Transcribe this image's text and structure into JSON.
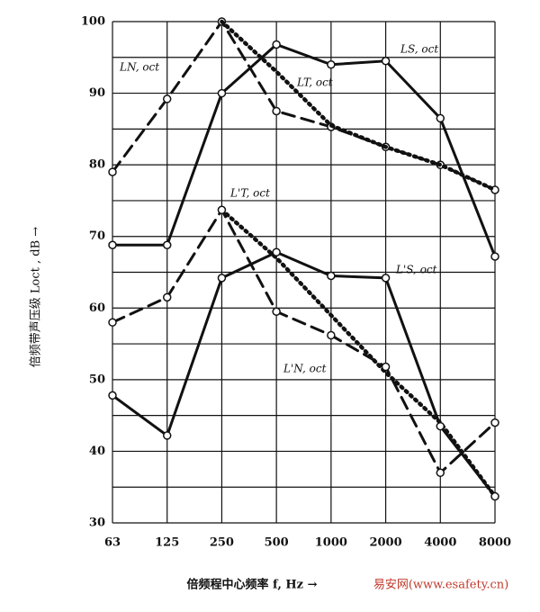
{
  "chart_data": {
    "type": "line",
    "y_label": "倍频带声压级 Loct , dB →",
    "x_label": "倍频程中心频率 f, Hz →",
    "watermark": "易安网(www.esafety.cn)",
    "categories": [
      "63",
      "125",
      "250",
      "500",
      "1000",
      "2000",
      "4000",
      "8000"
    ],
    "ylim": [
      30,
      100
    ],
    "yticks": [
      30,
      40,
      50,
      60,
      70,
      80,
      90,
      100
    ],
    "grid": true,
    "series": [
      {
        "name": "LN, oct",
        "color": "#111111",
        "style": "dashed",
        "values": [
          79,
          89.2,
          100,
          87.5,
          85.3,
          82.5,
          80,
          76.5
        ]
      },
      {
        "name": "LT, oct",
        "color": "#111111",
        "style": "dotted",
        "values": [
          null,
          null,
          100,
          93,
          85.5,
          82.5,
          80,
          76.5
        ]
      },
      {
        "name": "LS, oct",
        "color": "#111111",
        "style": "solid",
        "values": [
          68.8,
          68.8,
          90,
          96.8,
          94,
          94.5,
          86.5,
          67.2
        ]
      },
      {
        "name": "L'T, oct",
        "color": "#111111",
        "style": "dotted",
        "values": [
          null,
          null,
          73.7,
          67,
          59,
          51,
          44,
          33.7
        ]
      },
      {
        "name": "L'S, oct",
        "color": "#111111",
        "style": "solid",
        "values": [
          47.8,
          42.2,
          64.2,
          67.8,
          64.5,
          64.2,
          43.5,
          33.7
        ]
      },
      {
        "name": "L'N, oct",
        "color": "#111111",
        "style": "dashed",
        "values": [
          58,
          61.5,
          73.7,
          59.5,
          56.2,
          51.8,
          37,
          44
        ]
      }
    ]
  }
}
